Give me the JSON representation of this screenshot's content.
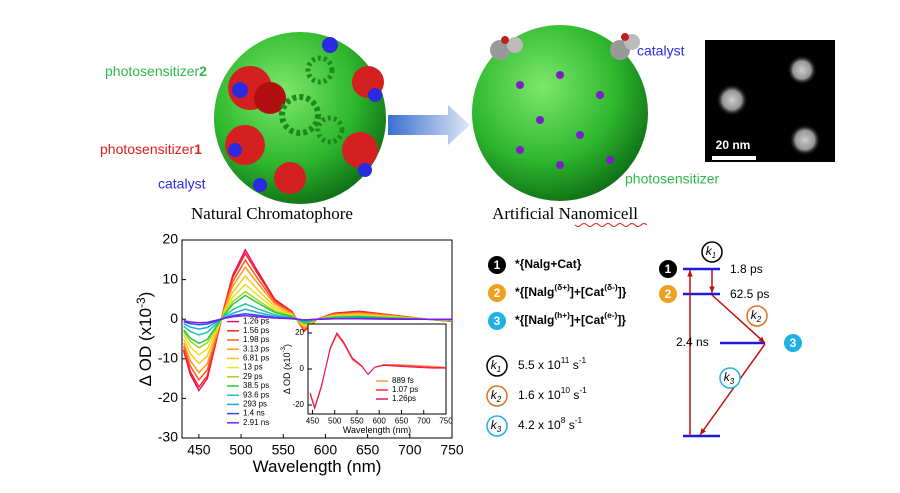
{
  "figure": {
    "left_labels": {
      "photosensitizer2": [
        {
          "text": "photosensitizer"
        },
        {
          "text": "2",
          "bold": true
        }
      ],
      "photosensitizer1": [
        {
          "text": "photosensitizer"
        },
        {
          "text": "1",
          "bold": true
        }
      ],
      "catalyst": "catalyst",
      "caption": "Natural Chromatophore"
    },
    "right_labels": {
      "catalyst": "catalyst",
      "photosensitizer": "photosensitizer",
      "caption": "Artificial Nanomicell",
      "scale_bar": "20 nm"
    }
  },
  "species_legend": [
    {
      "number": "1",
      "label": [
        {
          "text": "*{Nalg+Cat}"
        }
      ]
    },
    {
      "number": "2",
      "label": [
        {
          "text": "*{[Nalg"
        },
        {
          "text": "(δ+)",
          "sup": true
        },
        {
          "text": "]+[Cat"
        },
        {
          "text": "(δ-)",
          "sup": true
        },
        {
          "text": "]}"
        }
      ]
    },
    {
      "number": "3",
      "label": [
        {
          "text": "*{[Nalg"
        },
        {
          "text": "(h+)",
          "sup": true
        },
        {
          "text": "]+[Cat"
        },
        {
          "text": "(e-)",
          "sup": true
        },
        {
          "text": "]}"
        }
      ]
    }
  ],
  "rates": [
    {
      "symbol": "k",
      "sub": "1",
      "value": [
        {
          "text": "5.5 x 10"
        },
        {
          "text": "11",
          "sup": true
        },
        {
          "text": " s"
        },
        {
          "text": "-1",
          "sup": true
        }
      ]
    },
    {
      "symbol": "k",
      "sub": "2",
      "value": [
        {
          "text": "1.6 x 10"
        },
        {
          "text": "10",
          "sup": true
        },
        {
          "text": " s"
        },
        {
          "text": "-1",
          "sup": true
        }
      ]
    },
    {
      "symbol": "k",
      "sub": "3",
      "value": [
        {
          "text": "4.2 x 10"
        },
        {
          "text": "8",
          "sup": true
        },
        {
          "text": " s"
        },
        {
          "text": "-1",
          "sup": true
        }
      ]
    }
  ],
  "energy_diagram": {
    "states": [
      "1",
      "2",
      "3"
    ],
    "lifetimes": [
      "1.8 ps",
      "62.5 ps",
      "2.4 ns"
    ],
    "rate_labels": [
      {
        "symbol": "k",
        "sub": "1"
      },
      {
        "symbol": "k",
        "sub": "2"
      },
      {
        "symbol": "k",
        "sub": "3"
      }
    ]
  },
  "chart_data": [
    {
      "type": "line",
      "xlabel": "Wavelength (nm)",
      "ylabel": [
        {
          "text": "Δ OD (x10"
        },
        {
          "text": "-3",
          "sup": true
        },
        {
          "text": ")"
        }
      ],
      "xlim": [
        430,
        750
      ],
      "ylim": [
        -30,
        20
      ],
      "xticks": [
        450,
        500,
        550,
        600,
        650,
        700,
        750
      ],
      "yticks": [
        -30,
        -20,
        -10,
        0,
        10,
        20
      ],
      "legend": "lower left",
      "x": [
        432,
        440,
        450,
        460,
        470,
        480,
        490,
        505,
        520,
        540,
        560,
        575,
        590,
        610,
        640,
        680,
        720,
        750
      ],
      "series": [
        {
          "name": "1.26 ps",
          "color": "#e8106a",
          "values": [
            -8,
            -14,
            -18,
            -15,
            -6,
            3,
            11,
            17.5,
            12,
            5,
            2,
            -3,
            0,
            1.5,
            2,
            1,
            0,
            -0.5
          ]
        },
        {
          "name": "1.56 ps",
          "color": "#ff2020",
          "values": [
            -7.6,
            -13.3,
            -17.1,
            -14.3,
            -5.7,
            2.9,
            10.5,
            16.6,
            11.4,
            4.8,
            1.9,
            -2.9,
            0,
            1.4,
            1.9,
            1,
            0,
            -0.5
          ]
        },
        {
          "name": "1.98 ps",
          "color": "#ff5a1e",
          "values": [
            -6.8,
            -11.9,
            -15.3,
            -12.8,
            -5.1,
            2.6,
            9.4,
            14.9,
            10.2,
            4.3,
            1.7,
            -2.6,
            0,
            1.3,
            1.7,
            0.9,
            0,
            -0.4
          ]
        },
        {
          "name": "3.13 ps",
          "color": "#ff9a1e",
          "values": [
            -6,
            -10.5,
            -13.5,
            -11.3,
            -4.5,
            2.3,
            8.3,
            13.1,
            9,
            3.8,
            1.5,
            -2.3,
            0,
            1.1,
            1.5,
            0.8,
            0,
            -0.4
          ]
        },
        {
          "name": "6.81 ps",
          "color": "#ffc61e",
          "values": [
            -5,
            -8.7,
            -11.2,
            -9.3,
            -3.7,
            1.9,
            6.8,
            10.9,
            7.4,
            3.1,
            1.2,
            -1.9,
            0,
            0.9,
            1.2,
            0.6,
            0,
            -0.3
          ]
        },
        {
          "name": "13 ps",
          "color": "#e8e020",
          "values": [
            -4,
            -7,
            -9,
            -7.5,
            -3,
            1.5,
            5.5,
            8.8,
            6,
            2.5,
            1,
            -1.5,
            0,
            0.8,
            1,
            0.5,
            0,
            -0.3
          ]
        },
        {
          "name": "29 ps",
          "color": "#9ad81e",
          "values": [
            -3.2,
            -5.6,
            -7.2,
            -6,
            -2.4,
            1.2,
            4.4,
            7,
            4.8,
            2,
            0.8,
            -1.2,
            0,
            0.6,
            0.8,
            0.4,
            0,
            -0.2
          ]
        },
        {
          "name": "38.5 ps",
          "color": "#2cc83a",
          "values": [
            -2.7,
            -4.8,
            -6.1,
            -5.1,
            -2,
            1,
            3.7,
            6,
            4.1,
            1.7,
            0.7,
            -1,
            0,
            0.5,
            0.7,
            0.3,
            0,
            -0.2
          ]
        },
        {
          "name": "93.6 ps",
          "color": "#1ec8a0",
          "values": [
            -1.8,
            -3.1,
            -4,
            -3.3,
            -1.3,
            0.7,
            2.4,
            3.9,
            2.6,
            1.1,
            0.4,
            -0.7,
            0,
            0.3,
            0.4,
            0.2,
            0,
            -0.1
          ]
        },
        {
          "name": "293 ps",
          "color": "#1ea8e8",
          "values": [
            -1.1,
            -2,
            -2.5,
            -2.1,
            -0.8,
            0.4,
            1.5,
            2.5,
            1.7,
            0.7,
            0.3,
            -0.4,
            0,
            0.2,
            0.3,
            0.1,
            0,
            -0.1
          ]
        },
        {
          "name": "1.4 ns",
          "color": "#2a4ee8",
          "values": [
            -0.6,
            -1.1,
            -1.4,
            -1.2,
            -0.5,
            0.2,
            0.9,
            1.4,
            1,
            0.4,
            0.2,
            -0.2,
            0,
            0.1,
            0.2,
            0.1,
            0,
            0
          ]
        },
        {
          "name": "2.91 ns",
          "color": "#7a1ee8",
          "values": [
            -0.4,
            -0.7,
            -0.9,
            -0.8,
            -0.3,
            0.2,
            0.6,
            0.9,
            0.6,
            0.3,
            0.1,
            -0.2,
            0,
            0.1,
            0.1,
            0,
            0,
            0
          ]
        }
      ]
    },
    {
      "type": "line",
      "xlabel": "Wavelength (nm)",
      "ylabel": [
        {
          "text": "Δ OD (x10"
        },
        {
          "text": "-3",
          "sup": true
        },
        {
          "text": ")"
        }
      ],
      "xlim": [
        440,
        750
      ],
      "ylim": [
        -25,
        25
      ],
      "xticks": [
        450,
        500,
        550,
        600,
        650,
        700,
        750
      ],
      "yticks": [
        -20,
        0,
        20
      ],
      "legend": "lower right",
      "x": [
        445,
        455,
        470,
        490,
        505,
        520,
        540,
        560,
        575,
        590,
        610,
        640,
        680,
        720,
        750
      ],
      "series": [
        {
          "name": "889 fs",
          "color": "#ff9a3a",
          "values": [
            -13,
            -21,
            -9,
            11,
            19,
            14,
            5,
            1.5,
            -3,
            1,
            2.5,
            2.5,
            2,
            1.5,
            1
          ]
        },
        {
          "name": "1.07 ps",
          "color": "#ff3030",
          "values": [
            -13.5,
            -21.5,
            -9.5,
            11.5,
            19.5,
            14.5,
            5.5,
            1.8,
            -3,
            1,
            2.2,
            2,
            1.5,
            1,
            0.8
          ]
        },
        {
          "name": "1.26ps",
          "color": "#e8106a",
          "values": [
            -14,
            -22,
            -10,
            12,
            20,
            15,
            6,
            2,
            -3,
            1,
            2,
            1.5,
            1,
            0.5,
            0.5
          ]
        }
      ]
    }
  ]
}
